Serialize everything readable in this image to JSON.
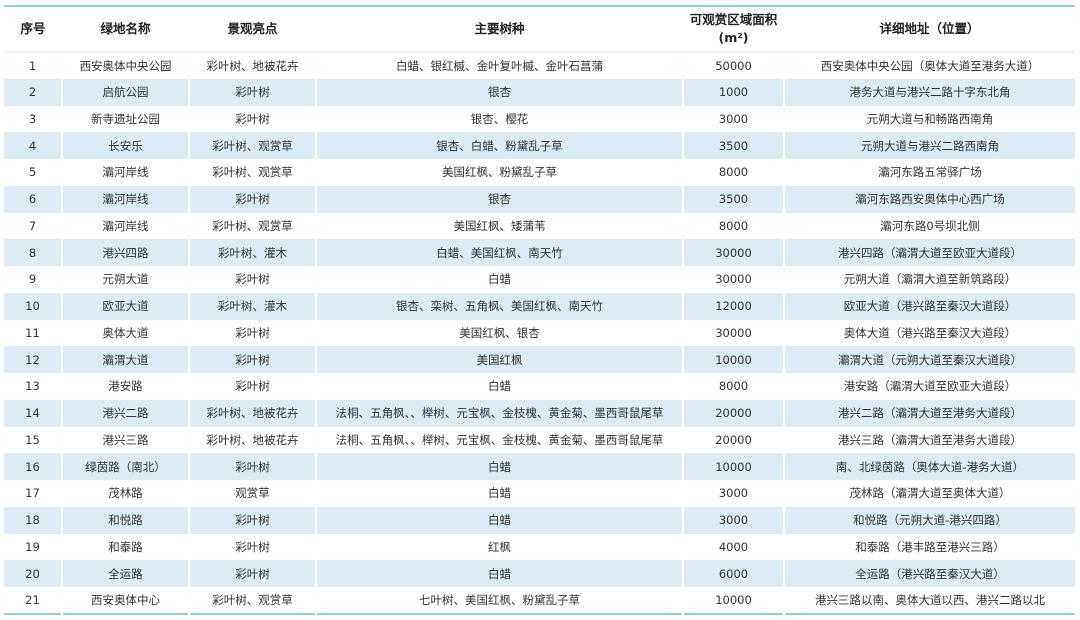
{
  "header": {
    "index": "序号",
    "name": "绿地名称",
    "highlight": "景观亮点",
    "species": "主要树种",
    "area": "可观赏区域面积",
    "area_unit": "(m²)",
    "address": "详细地址（位置）"
  },
  "rows": [
    {
      "index": "1",
      "name": "西安奥体中央公园",
      "highlight": "彩叶树、地被花卉",
      "species": "白蜡、银红槭、金叶复叶槭、金叶石菖蒲",
      "area": "50000",
      "address": "西安奥体中央公园（奥体大道至港务大道）"
    },
    {
      "index": "2",
      "name": "启航公园",
      "highlight": "彩叶树",
      "species": "银杏",
      "area": "1000",
      "address": "港务大道与港兴二路十字东北角"
    },
    {
      "index": "3",
      "name": "新寺遗址公园",
      "highlight": "彩叶树",
      "species": "银杏、樱花",
      "area": "3000",
      "address": "元朔大道与和畅路西南角"
    },
    {
      "index": "4",
      "name": "长安乐",
      "highlight": "彩叶树、观赏草",
      "species": "银杏、白蜡、粉黛乱子草",
      "area": "3500",
      "address": "元朔大道与港兴二路西南角"
    },
    {
      "index": "5",
      "name": "灞河岸线",
      "highlight": "彩叶树、观赏草",
      "species": "美国红枫、粉黛乱子草",
      "area": "8000",
      "address": "灞河东路五常驿广场"
    },
    {
      "index": "6",
      "name": "灞河岸线",
      "highlight": "彩叶树",
      "species": "银杏",
      "area": "3500",
      "address": "灞河东路西安奥体中心西广场"
    },
    {
      "index": "7",
      "name": "灞河岸线",
      "highlight": "彩叶树、观赏草",
      "species": "美国红枫、矮蒲苇",
      "area": "8000",
      "address": "灞河东路0号坝北侧"
    },
    {
      "index": "8",
      "name": "港兴四路",
      "highlight": "彩叶树、灌木",
      "species": "白蜡、美国红枫、南天竹",
      "area": "30000",
      "address": "港兴四路（灞渭大道至欧亚大道段）"
    },
    {
      "index": "9",
      "name": "元朔大道",
      "highlight": "彩叶树",
      "species": "白蜡",
      "area": "30000",
      "address": "元朔大道（灞渭大道至新筑路段）"
    },
    {
      "index": "10",
      "name": "欧亚大道",
      "highlight": "彩叶树、灌木",
      "species": "银杏、栾树、五角枫、美国红枫、南天竹",
      "area": "12000",
      "address": "欧亚大道（港兴路至秦汉大道段）"
    },
    {
      "index": "11",
      "name": "奥体大道",
      "highlight": "彩叶树",
      "species": "美国红枫、银杏",
      "area": "30000",
      "address": "奥体大道（港兴路至秦汉大道段）"
    },
    {
      "index": "12",
      "name": "灞渭大道",
      "highlight": "彩叶树",
      "species": "美国红枫",
      "area": "10000",
      "address": "灞渭大道（元朔大道至秦汉大道段）"
    },
    {
      "index": "13",
      "name": "港安路",
      "highlight": "彩叶树",
      "species": "白蜡",
      "area": "8000",
      "address": "港安路（灞渭大道至欧亚大道段）"
    },
    {
      "index": "14",
      "name": "港兴二路",
      "highlight": "彩叶树、地被花卉",
      "species": "法桐、五角枫、、榉树、元宝枫、金枝槐、黄金菊、墨西哥鼠尾草",
      "area": "20000",
      "address": "港兴二路（灞渭大道至港务大道段）"
    },
    {
      "index": "15",
      "name": "港兴三路",
      "highlight": "彩叶树、地被花卉",
      "species": "法桐、五角枫、、榉树、元宝枫、金枝槐、黄金菊、墨西哥鼠尾草",
      "area": "20000",
      "address": "港兴三路（灞渭大道至港务大道段）"
    },
    {
      "index": "16",
      "name": "绿茵路（南北）",
      "highlight": "彩叶树",
      "species": "白蜡",
      "area": "10000",
      "address": "南、北绿茵路（奥体大道-港务大道）"
    },
    {
      "index": "17",
      "name": "茂林路",
      "highlight": "观赏草",
      "species": "白蜡",
      "area": "3000",
      "address": "茂林路（灞渭大道至奥体大道）"
    },
    {
      "index": "18",
      "name": "和悦路",
      "highlight": "彩叶树",
      "species": "白蜡",
      "area": "3000",
      "address": "和悦路（元朔大道-港兴四路）"
    },
    {
      "index": "19",
      "name": "和泰路",
      "highlight": "彩叶树",
      "species": "红枫",
      "area": "4000",
      "address": "和泰路（港丰路至港兴三路）"
    },
    {
      "index": "20",
      "name": "全运路",
      "highlight": "彩叶树",
      "species": "白蜡",
      "area": "6000",
      "address": "全运路（港兴路至秦汉大道）"
    },
    {
      "index": "21",
      "name": "西安奥体中心",
      "highlight": "彩叶树、观赏草",
      "species": "七叶树、美国红枫、粉黛乱子草",
      "area": "10000",
      "address": "港兴三路以南、奥体大道以西、港兴二路以北"
    }
  ],
  "colors": {
    "stripe": "#dcebf4",
    "rule": "#8fcbea"
  }
}
